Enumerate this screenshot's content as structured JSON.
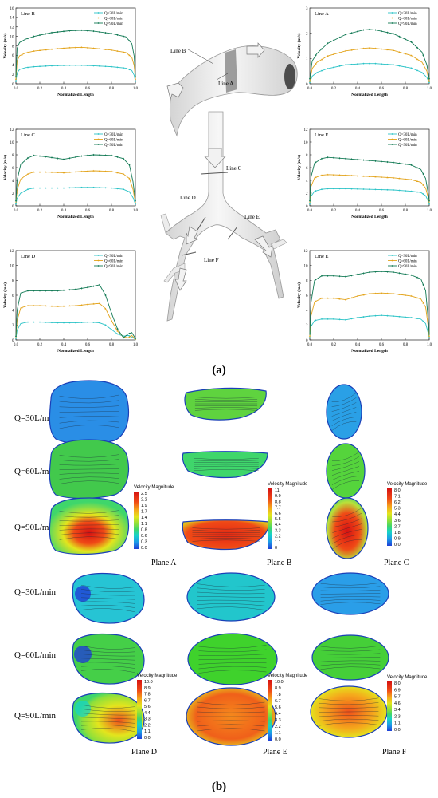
{
  "figure": {
    "label_a": "(a)",
    "label_b": "(b)",
    "series_labels": [
      "Q=30L/min",
      "Q=60L/min",
      "Q=90L/min"
    ],
    "series_colors": [
      "#2cc3c7",
      "#e3a31a",
      "#137a55"
    ],
    "airway": {
      "lines": [
        "Line A",
        "Line B",
        "Line C",
        "Line D",
        "Line E",
        "Line F"
      ]
    },
    "contours": {
      "row_labels": [
        "Q=30L/min",
        "Q=60L/min",
        "Q=90L/min"
      ],
      "planes_top": [
        "Plane A",
        "Plane B",
        "Plane C"
      ],
      "planes_bottom": [
        "Plane D",
        "Plane E",
        "Plane F"
      ],
      "legend_title": "Velocity Magnitude",
      "legend_ticks": {
        "A": [
          "2.5",
          "2.2",
          "1.9",
          "1.7",
          "1.4",
          "1.1",
          "0.8",
          "0.6",
          "0.3",
          "0.0"
        ],
        "B": [
          "11",
          "9.9",
          "8.8",
          "7.7",
          "6.6",
          "5.5",
          "4.4",
          "3.3",
          "2.2",
          "1.1",
          "0"
        ],
        "C": [
          "8.0",
          "7.1",
          "6.2",
          "5.3",
          "4.4",
          "3.6",
          "2.7",
          "1.8",
          "0.9",
          "0.0"
        ],
        "D": [
          "10.0",
          "8.9",
          "7.8",
          "6.7",
          "5.6",
          "4.4",
          "3.3",
          "2.2",
          "1.1",
          "0.0"
        ],
        "E": [
          "10.0",
          "8.9",
          "7.8",
          "6.7",
          "5.6",
          "4.4",
          "3.3",
          "2.2",
          "1.1",
          "0.0"
        ],
        "F": [
          "8.0",
          "6.9",
          "5.7",
          "4.6",
          "3.4",
          "2.3",
          "1.1",
          "0.0"
        ]
      },
      "colorscale": [
        "#1f3fd6",
        "#1d9be8",
        "#17d3c8",
        "#3fd66b",
        "#8fe03a",
        "#e3e51d",
        "#f5a81c",
        "#f04a16",
        "#d61212"
      ]
    }
  },
  "chart_data": [
    {
      "type": "line",
      "title": "Line B",
      "xlabel": "Normalized Length",
      "ylabel": "Velocity (m/s)",
      "xlim": [
        0,
        1
      ],
      "ylim": [
        0,
        16
      ],
      "xticks": [
        "0.0",
        "0.2",
        "0.4",
        "0.6",
        "0.8",
        "1.0"
      ],
      "yticks": [
        "0",
        "2",
        "4",
        "6",
        "8",
        "10",
        "12",
        "14",
        "16"
      ],
      "x": [
        0,
        0.01,
        0.03,
        0.08,
        0.15,
        0.3,
        0.45,
        0.55,
        0.65,
        0.8,
        0.92,
        0.97,
        0.99,
        1.0
      ],
      "series": [
        {
          "name": "Q=30L/min",
          "values": [
            0.5,
            2.3,
            3.0,
            3.4,
            3.6,
            3.8,
            3.9,
            3.9,
            3.8,
            3.6,
            3.3,
            2.8,
            1.8,
            0.5
          ]
        },
        {
          "name": "Q=60L/min",
          "values": [
            1.0,
            4.8,
            5.9,
            6.5,
            6.9,
            7.3,
            7.6,
            7.7,
            7.5,
            7.1,
            6.6,
            5.6,
            3.8,
            1.0
          ]
        },
        {
          "name": "Q=90L/min",
          "values": [
            1.5,
            7.5,
            8.7,
            9.4,
            10.0,
            10.8,
            11.2,
            11.3,
            11.1,
            10.6,
            9.9,
            8.5,
            5.8,
            1.5
          ]
        }
      ]
    },
    {
      "type": "line",
      "title": "Line A",
      "xlabel": "Normalized Length",
      "ylabel": "Velocity (m/s)",
      "xlim": [
        0,
        1
      ],
      "ylim": [
        0,
        3
      ],
      "xticks": [
        "0.0",
        "0.2",
        "0.4",
        "0.6",
        "0.8",
        "1.0"
      ],
      "yticks": [
        "0",
        "1",
        "2",
        "3"
      ],
      "x": [
        0,
        0.02,
        0.06,
        0.15,
        0.3,
        0.45,
        0.5,
        0.55,
        0.7,
        0.85,
        0.94,
        0.98,
        1.0
      ],
      "series": [
        {
          "name": "Q=30L/min",
          "values": [
            0.05,
            0.3,
            0.45,
            0.6,
            0.75,
            0.8,
            0.8,
            0.8,
            0.75,
            0.62,
            0.45,
            0.25,
            0.05
          ]
        },
        {
          "name": "Q=60L/min",
          "values": [
            0.1,
            0.6,
            0.85,
            1.1,
            1.3,
            1.4,
            1.42,
            1.4,
            1.32,
            1.12,
            0.85,
            0.5,
            0.1
          ]
        },
        {
          "name": "Q=90L/min",
          "values": [
            0.2,
            0.9,
            1.2,
            1.6,
            1.95,
            2.13,
            2.15,
            2.13,
            1.98,
            1.65,
            1.25,
            0.75,
            0.2
          ]
        }
      ]
    },
    {
      "type": "line",
      "title": "Line C",
      "xlabel": "Normalized Length",
      "ylabel": "Velocity (m/s)",
      "xlim": [
        0,
        1
      ],
      "ylim": [
        0,
        12
      ],
      "xticks": [
        "0.0",
        "0.2",
        "0.4",
        "0.6",
        "0.8",
        "1.0"
      ],
      "yticks": [
        "0",
        "2",
        "4",
        "6",
        "8",
        "10",
        "12"
      ],
      "x": [
        0,
        0.01,
        0.04,
        0.1,
        0.15,
        0.25,
        0.4,
        0.55,
        0.65,
        0.8,
        0.9,
        0.95,
        0.98,
        1.0
      ],
      "series": [
        {
          "name": "Q=30L/min",
          "values": [
            0.3,
            1.2,
            2.0,
            2.6,
            2.8,
            2.8,
            2.8,
            2.9,
            2.9,
            2.8,
            2.6,
            2.2,
            1.3,
            0.3
          ]
        },
        {
          "name": "Q=60L/min",
          "values": [
            0.5,
            2.5,
            4.2,
            5.0,
            5.3,
            5.3,
            5.2,
            5.4,
            5.5,
            5.4,
            5.0,
            4.3,
            2.6,
            0.5
          ]
        },
        {
          "name": "Q=90L/min",
          "values": [
            0.8,
            4.0,
            6.5,
            7.5,
            7.9,
            7.7,
            7.3,
            7.8,
            8.0,
            7.9,
            7.4,
            6.4,
            3.8,
            0.8
          ]
        }
      ]
    },
    {
      "type": "line",
      "title": "Line F",
      "xlabel": "Normalized Length",
      "ylabel": "Velocity (m/s)",
      "xlim": [
        0,
        1
      ],
      "ylim": [
        0,
        12
      ],
      "xticks": [
        "0.0",
        "0.2",
        "0.4",
        "0.6",
        "0.8",
        "1.0"
      ],
      "yticks": [
        "0",
        "2",
        "4",
        "6",
        "8",
        "10",
        "12"
      ],
      "x": [
        0,
        0.01,
        0.04,
        0.1,
        0.15,
        0.3,
        0.5,
        0.7,
        0.85,
        0.93,
        0.97,
        0.99,
        1.0
      ],
      "series": [
        {
          "name": "Q=30L/min",
          "values": [
            0.3,
            1.5,
            2.3,
            2.6,
            2.7,
            2.7,
            2.6,
            2.5,
            2.3,
            2.1,
            1.6,
            0.8,
            0.3
          ]
        },
        {
          "name": "Q=60L/min",
          "values": [
            0.5,
            3.0,
            4.4,
            4.8,
            4.9,
            4.8,
            4.6,
            4.4,
            4.1,
            3.7,
            2.8,
            1.4,
            0.5
          ]
        },
        {
          "name": "Q=90L/min",
          "values": [
            0.8,
            4.5,
            6.7,
            7.4,
            7.6,
            7.4,
            7.1,
            6.8,
            6.4,
            5.7,
            4.3,
            2.1,
            0.8
          ]
        }
      ]
    },
    {
      "type": "line",
      "title": "Line D",
      "xlabel": "Normalized Length",
      "ylabel": "Velocity (m/s)",
      "xlim": [
        0,
        1
      ],
      "ylim": [
        0,
        12
      ],
      "xticks": [
        "0.0",
        "0.2",
        "0.4",
        "0.6",
        "0.8",
        "1.0"
      ],
      "yticks": [
        "0",
        "2",
        "4",
        "6",
        "8",
        "10",
        "12"
      ],
      "x": [
        0,
        0.01,
        0.04,
        0.1,
        0.2,
        0.35,
        0.5,
        0.62,
        0.7,
        0.75,
        0.8,
        0.85,
        0.9,
        0.94,
        0.97,
        1.0
      ],
      "series": [
        {
          "name": "Q=30L/min",
          "values": [
            0.2,
            1.3,
            2.2,
            2.4,
            2.4,
            2.3,
            2.3,
            2.4,
            2.3,
            2.0,
            1.4,
            0.8,
            0.5,
            0.6,
            0.4,
            0.1
          ]
        },
        {
          "name": "Q=60L/min",
          "values": [
            0.3,
            2.6,
            4.3,
            4.6,
            4.6,
            4.5,
            4.6,
            4.8,
            4.9,
            4.2,
            2.6,
            1.2,
            0.4,
            0.3,
            0.6,
            0.1
          ]
        },
        {
          "name": "Q=90L/min",
          "values": [
            0.5,
            4.0,
            6.3,
            6.6,
            6.6,
            6.6,
            6.8,
            7.1,
            7.4,
            6.0,
            3.6,
            1.5,
            0.3,
            0.8,
            1.0,
            0.2
          ]
        }
      ]
    },
    {
      "type": "line",
      "title": "Line E",
      "xlabel": "Normalized Length",
      "ylabel": "Velocity (m/s)",
      "xlim": [
        0,
        1
      ],
      "ylim": [
        0,
        12
      ],
      "xticks": [
        "0.0",
        "0.2",
        "0.4",
        "0.6",
        "0.8",
        "1.0"
      ],
      "yticks": [
        "0",
        "2",
        "4",
        "6",
        "8",
        "10",
        "12"
      ],
      "x": [
        0,
        0.01,
        0.04,
        0.1,
        0.2,
        0.3,
        0.4,
        0.5,
        0.6,
        0.7,
        0.85,
        0.93,
        0.97,
        0.99,
        1.0
      ],
      "series": [
        {
          "name": "Q=30L/min",
          "values": [
            0.3,
            1.8,
            2.6,
            2.8,
            2.8,
            2.7,
            3.0,
            3.2,
            3.3,
            3.2,
            3.0,
            2.8,
            2.2,
            1.0,
            0.3
          ]
        },
        {
          "name": "Q=60L/min",
          "values": [
            0.5,
            3.2,
            5.1,
            5.6,
            5.6,
            5.4,
            5.9,
            6.2,
            6.3,
            6.2,
            5.9,
            5.5,
            4.4,
            2.0,
            0.5
          ]
        },
        {
          "name": "Q=90L/min",
          "values": [
            0.8,
            5.0,
            8.0,
            8.6,
            8.6,
            8.5,
            8.8,
            9.1,
            9.2,
            9.1,
            8.7,
            8.2,
            6.6,
            3.0,
            0.8
          ]
        }
      ]
    }
  ]
}
